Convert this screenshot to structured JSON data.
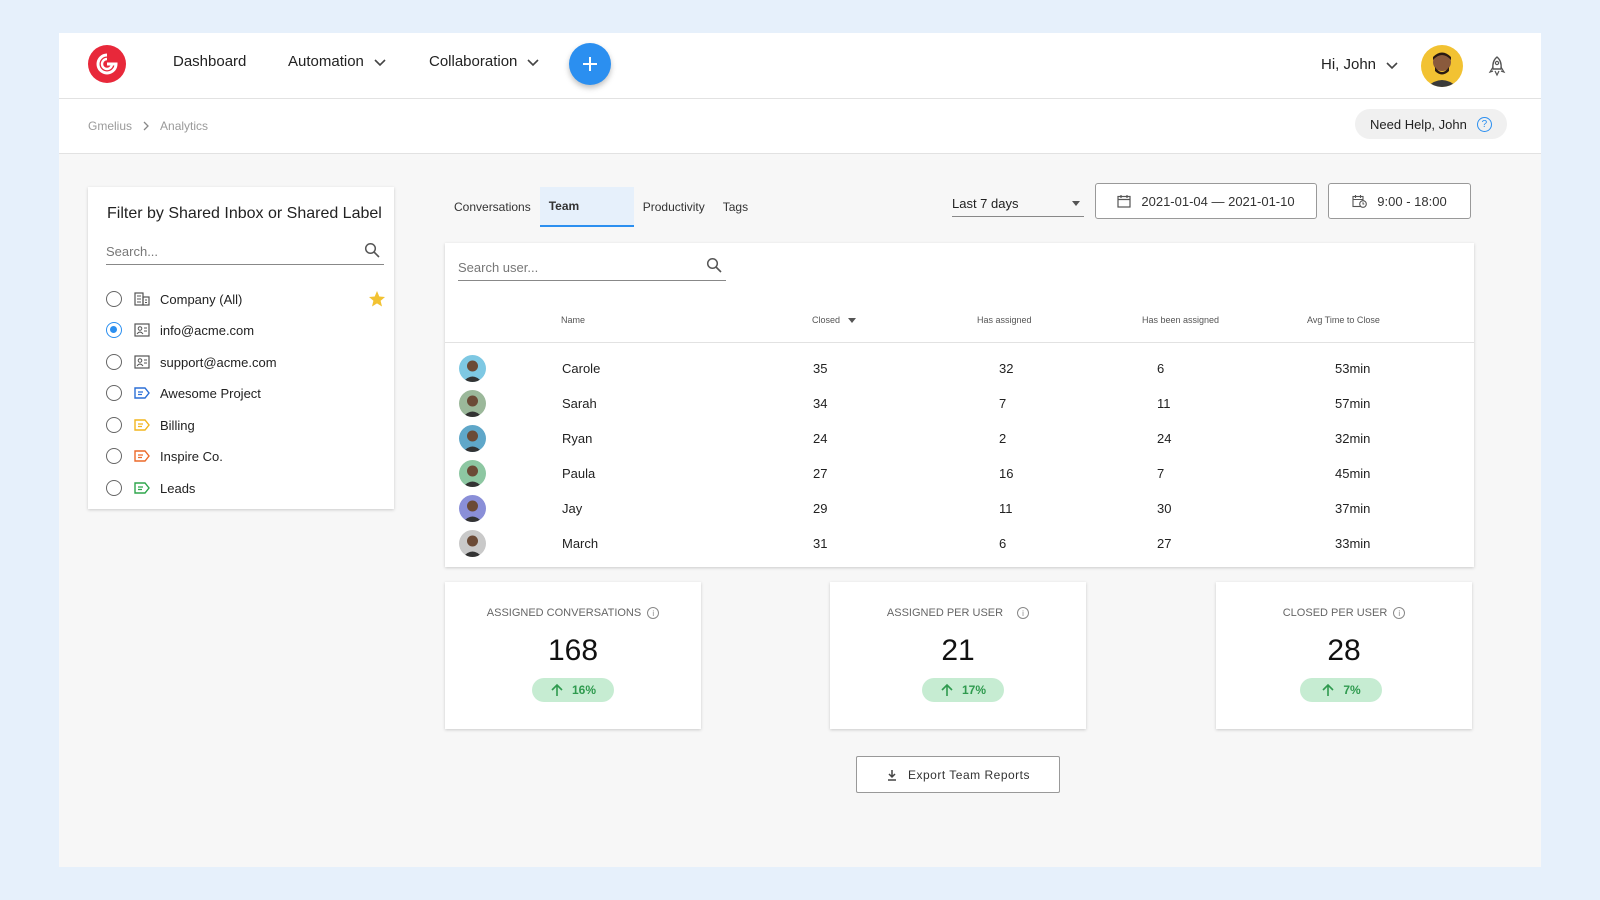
{
  "nav": {
    "dashboard": "Dashboard",
    "automation": "Automation",
    "collaboration": "Collaboration",
    "greeting": "Hi, John"
  },
  "breadcrumb": {
    "root": "Gmelius",
    "current": "Analytics"
  },
  "help": {
    "label": "Need Help, John"
  },
  "filter": {
    "title": "Filter by Shared Inbox or Shared Label",
    "search_placeholder": "Search...",
    "options": [
      {
        "label": "Company (All)",
        "selected": false,
        "icon": "building-icon"
      },
      {
        "label": "info@acme.com",
        "selected": true,
        "icon": "inbox-icon"
      },
      {
        "label": "support@acme.com",
        "selected": false,
        "icon": "inbox-icon"
      },
      {
        "label": "Awesome Project",
        "selected": false,
        "icon": "label-icon",
        "color": "#2b6fd6"
      },
      {
        "label": "Billing",
        "selected": false,
        "icon": "label-icon",
        "color": "#f2b51e"
      },
      {
        "label": "Inspire Co.",
        "selected": false,
        "icon": "label-icon",
        "color": "#ec6a2a"
      },
      {
        "label": "Leads",
        "selected": false,
        "icon": "label-icon",
        "color": "#2ea64c"
      }
    ]
  },
  "tabs": [
    {
      "label": "Conversations",
      "active": false
    },
    {
      "label": "Team",
      "active": true
    },
    {
      "label": "Productivity",
      "active": false
    },
    {
      "label": "Tags",
      "active": false
    }
  ],
  "controls": {
    "range": "Last 7 days",
    "dates": "2021-01-04 — 2021-01-10",
    "hours": "9:00 - 18:00"
  },
  "table": {
    "search_placeholder": "Search user...",
    "columns": [
      "Name",
      "Closed",
      "Has assigned",
      "Has been assigned",
      "Avg Time to Close"
    ],
    "rows": [
      {
        "name": "Carole",
        "closed": "35",
        "has_assigned": "32",
        "been_assigned": "6",
        "avg": "53min",
        "color": "#7ec8e3"
      },
      {
        "name": "Sarah",
        "closed": "34",
        "has_assigned": "7",
        "been_assigned": "11",
        "avg": "57min",
        "color": "#9bb89a"
      },
      {
        "name": "Ryan",
        "closed": "24",
        "has_assigned": "2",
        "been_assigned": "24",
        "avg": "32min",
        "color": "#5fa7c9"
      },
      {
        "name": "Paula",
        "closed": "27",
        "has_assigned": "16",
        "been_assigned": "7",
        "avg": "45min",
        "color": "#8dc7a2"
      },
      {
        "name": "Jay",
        "closed": "29",
        "has_assigned": "11",
        "been_assigned": "30",
        "avg": "37min",
        "color": "#8a8fd8"
      },
      {
        "name": "March",
        "closed": "31",
        "has_assigned": "6",
        "been_assigned": "27",
        "avg": "33min",
        "color": "#c9c9c9"
      }
    ]
  },
  "stats": [
    {
      "label": "ASSIGNED CONVERSATIONS",
      "value": "168",
      "change": "16%"
    },
    {
      "label": "ASSIGNED PER USER",
      "value": "21",
      "change": "17%"
    },
    {
      "label": "CLOSED PER USER",
      "value": "28",
      "change": "7%"
    }
  ],
  "export": {
    "label": "Export Team Reports"
  },
  "colors": {
    "accent": "#2b8ff0",
    "brand": "#e8283a",
    "positive": "#2e9a4e"
  }
}
